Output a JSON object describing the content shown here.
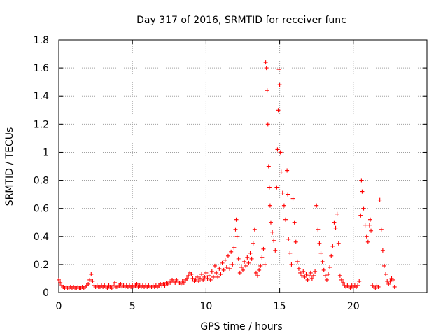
{
  "chart_data": {
    "type": "scatter",
    "title": "Day 317 of 2016, SRMTID for receiver func",
    "xlabel": "GPS time / hours",
    "ylabel": "SRMTID / TECUs",
    "xlim": [
      0,
      25
    ],
    "ylim": [
      0,
      1.8
    ],
    "xticks": [
      0,
      5,
      10,
      15,
      20
    ],
    "xtick_labels": [
      "0",
      "5",
      "10",
      "15",
      "20"
    ],
    "yticks": [
      0,
      0.2,
      0.4,
      0.6,
      0.8,
      1,
      1.2,
      1.4,
      1.6,
      1.8
    ],
    "ytick_labels": [
      "0",
      "0.2",
      "0.4",
      "0.6",
      "0.8",
      "1",
      "1.2",
      "1.4",
      "1.6",
      "1.8"
    ],
    "grid": true,
    "marker": "+",
    "color": "#ff0000",
    "series": [
      {
        "name": "SRMTID",
        "points": [
          [
            0.0,
            0.09
          ],
          [
            0.1,
            0.07
          ],
          [
            0.2,
            0.05
          ],
          [
            0.3,
            0.04
          ],
          [
            0.4,
            0.03
          ],
          [
            0.5,
            0.04
          ],
          [
            0.6,
            0.03
          ],
          [
            0.7,
            0.03
          ],
          [
            0.8,
            0.04
          ],
          [
            0.9,
            0.03
          ],
          [
            1.0,
            0.04
          ],
          [
            1.1,
            0.03
          ],
          [
            1.2,
            0.03
          ],
          [
            1.3,
            0.04
          ],
          [
            1.4,
            0.03
          ],
          [
            1.5,
            0.03
          ],
          [
            1.6,
            0.04
          ],
          [
            1.7,
            0.03
          ],
          [
            1.8,
            0.04
          ],
          [
            1.9,
            0.05
          ],
          [
            2.0,
            0.06
          ],
          [
            2.1,
            0.09
          ],
          [
            2.2,
            0.13
          ],
          [
            2.3,
            0.08
          ],
          [
            2.4,
            0.05
          ],
          [
            2.5,
            0.04
          ],
          [
            2.6,
            0.05
          ],
          [
            2.7,
            0.04
          ],
          [
            2.8,
            0.04
          ],
          [
            2.9,
            0.05
          ],
          [
            3.0,
            0.04
          ],
          [
            3.1,
            0.05
          ],
          [
            3.2,
            0.04
          ],
          [
            3.3,
            0.03
          ],
          [
            3.4,
            0.05
          ],
          [
            3.5,
            0.04
          ],
          [
            3.6,
            0.03
          ],
          [
            3.7,
            0.05
          ],
          [
            3.8,
            0.07
          ],
          [
            3.9,
            0.04
          ],
          [
            4.0,
            0.04
          ],
          [
            4.1,
            0.05
          ],
          [
            4.2,
            0.06
          ],
          [
            4.3,
            0.04
          ],
          [
            4.4,
            0.05
          ],
          [
            4.5,
            0.04
          ],
          [
            4.6,
            0.05
          ],
          [
            4.7,
            0.04
          ],
          [
            4.8,
            0.05
          ],
          [
            4.9,
            0.04
          ],
          [
            5.0,
            0.05
          ],
          [
            5.1,
            0.04
          ],
          [
            5.2,
            0.05
          ],
          [
            5.3,
            0.06
          ],
          [
            5.4,
            0.04
          ],
          [
            5.5,
            0.05
          ],
          [
            5.6,
            0.04
          ],
          [
            5.7,
            0.05
          ],
          [
            5.8,
            0.04
          ],
          [
            5.9,
            0.05
          ],
          [
            6.0,
            0.04
          ],
          [
            6.1,
            0.05
          ],
          [
            6.2,
            0.04
          ],
          [
            6.3,
            0.04
          ],
          [
            6.4,
            0.05
          ],
          [
            6.5,
            0.04
          ],
          [
            6.6,
            0.05
          ],
          [
            6.7,
            0.04
          ],
          [
            6.8,
            0.05
          ],
          [
            6.9,
            0.06
          ],
          [
            7.0,
            0.05
          ],
          [
            7.1,
            0.06
          ],
          [
            7.2,
            0.05
          ],
          [
            7.3,
            0.07
          ],
          [
            7.4,
            0.06
          ],
          [
            7.5,
            0.08
          ],
          [
            7.6,
            0.07
          ],
          [
            7.7,
            0.09
          ],
          [
            7.8,
            0.08
          ],
          [
            7.9,
            0.07
          ],
          [
            8.0,
            0.09
          ],
          [
            8.1,
            0.08
          ],
          [
            8.2,
            0.07
          ],
          [
            8.3,
            0.06
          ],
          [
            8.4,
            0.08
          ],
          [
            8.5,
            0.07
          ],
          [
            8.6,
            0.09
          ],
          [
            8.7,
            0.1
          ],
          [
            8.8,
            0.12
          ],
          [
            8.9,
            0.14
          ],
          [
            9.0,
            0.13
          ],
          [
            9.1,
            0.1
          ],
          [
            9.2,
            0.08
          ],
          [
            9.3,
            0.09
          ],
          [
            9.4,
            0.11
          ],
          [
            9.5,
            0.08
          ],
          [
            9.6,
            0.1
          ],
          [
            9.7,
            0.13
          ],
          [
            9.8,
            0.09
          ],
          [
            9.9,
            0.11
          ],
          [
            10.0,
            0.14
          ],
          [
            10.1,
            0.1
          ],
          [
            10.2,
            0.12
          ],
          [
            10.3,
            0.09
          ],
          [
            10.4,
            0.15
          ],
          [
            10.5,
            0.11
          ],
          [
            10.6,
            0.19
          ],
          [
            10.7,
            0.14
          ],
          [
            10.8,
            0.11
          ],
          [
            10.9,
            0.17
          ],
          [
            11.0,
            0.13
          ],
          [
            11.1,
            0.21
          ],
          [
            11.2,
            0.16
          ],
          [
            11.3,
            0.23
          ],
          [
            11.4,
            0.18
          ],
          [
            11.5,
            0.26
          ],
          [
            11.6,
            0.17
          ],
          [
            11.7,
            0.29
          ],
          [
            11.8,
            0.2
          ],
          [
            11.9,
            0.32
          ],
          [
            12.0,
            0.45
          ],
          [
            12.05,
            0.52
          ],
          [
            12.1,
            0.4
          ],
          [
            12.2,
            0.24
          ],
          [
            12.3,
            0.14
          ],
          [
            12.4,
            0.18
          ],
          [
            12.5,
            0.16
          ],
          [
            12.6,
            0.22
          ],
          [
            12.7,
            0.19
          ],
          [
            12.8,
            0.25
          ],
          [
            12.9,
            0.21
          ],
          [
            13.0,
            0.28
          ],
          [
            13.1,
            0.24
          ],
          [
            13.2,
            0.35
          ],
          [
            13.3,
            0.45
          ],
          [
            13.4,
            0.14
          ],
          [
            13.5,
            0.12
          ],
          [
            13.6,
            0.16
          ],
          [
            13.7,
            0.19
          ],
          [
            13.8,
            0.25
          ],
          [
            13.9,
            0.31
          ],
          [
            14.0,
            0.2
          ],
          [
            14.05,
            1.64
          ],
          [
            14.1,
            1.6
          ],
          [
            14.15,
            1.44
          ],
          [
            14.2,
            1.2
          ],
          [
            14.25,
            0.9
          ],
          [
            14.3,
            0.75
          ],
          [
            14.35,
            0.62
          ],
          [
            14.4,
            0.5
          ],
          [
            14.5,
            0.43
          ],
          [
            14.6,
            0.37
          ],
          [
            14.7,
            0.3
          ],
          [
            14.8,
            0.75
          ],
          [
            14.85,
            1.02
          ],
          [
            14.9,
            1.3
          ],
          [
            14.95,
            1.59
          ],
          [
            15.0,
            1.48
          ],
          [
            15.05,
            1.0
          ],
          [
            15.1,
            0.86
          ],
          [
            15.2,
            0.71
          ],
          [
            15.3,
            0.62
          ],
          [
            15.4,
            0.52
          ],
          [
            15.5,
            0.87
          ],
          [
            15.55,
            0.7
          ],
          [
            15.6,
            0.38
          ],
          [
            15.7,
            0.28
          ],
          [
            15.8,
            0.2
          ],
          [
            15.9,
            0.67
          ],
          [
            16.0,
            0.5
          ],
          [
            16.1,
            0.36
          ],
          [
            16.2,
            0.22
          ],
          [
            16.3,
            0.17
          ],
          [
            16.4,
            0.14
          ],
          [
            16.5,
            0.12
          ],
          [
            16.6,
            0.15
          ],
          [
            16.7,
            0.11
          ],
          [
            16.8,
            0.13
          ],
          [
            16.9,
            0.09
          ],
          [
            17.0,
            0.12
          ],
          [
            17.1,
            0.14
          ],
          [
            17.2,
            0.1
          ],
          [
            17.3,
            0.12
          ],
          [
            17.4,
            0.15
          ],
          [
            17.5,
            0.62
          ],
          [
            17.6,
            0.45
          ],
          [
            17.7,
            0.35
          ],
          [
            17.8,
            0.28
          ],
          [
            17.9,
            0.22
          ],
          [
            18.0,
            0.16
          ],
          [
            18.1,
            0.12
          ],
          [
            18.2,
            0.09
          ],
          [
            18.3,
            0.13
          ],
          [
            18.4,
            0.18
          ],
          [
            18.5,
            0.26
          ],
          [
            18.6,
            0.33
          ],
          [
            18.7,
            0.5
          ],
          [
            18.8,
            0.46
          ],
          [
            18.9,
            0.56
          ],
          [
            19.0,
            0.35
          ],
          [
            19.1,
            0.12
          ],
          [
            19.2,
            0.09
          ],
          [
            19.3,
            0.07
          ],
          [
            19.4,
            0.05
          ],
          [
            19.5,
            0.04
          ],
          [
            19.6,
            0.05
          ],
          [
            19.7,
            0.04
          ],
          [
            19.8,
            0.03
          ],
          [
            19.9,
            0.05
          ],
          [
            20.0,
            0.04
          ],
          [
            20.1,
            0.05
          ],
          [
            20.2,
            0.04
          ],
          [
            20.3,
            0.05
          ],
          [
            20.4,
            0.08
          ],
          [
            20.5,
            0.55
          ],
          [
            20.55,
            0.8
          ],
          [
            20.6,
            0.72
          ],
          [
            20.7,
            0.6
          ],
          [
            20.8,
            0.48
          ],
          [
            20.9,
            0.4
          ],
          [
            21.0,
            0.36
          ],
          [
            21.1,
            0.48
          ],
          [
            21.15,
            0.52
          ],
          [
            21.2,
            0.44
          ],
          [
            21.3,
            0.05
          ],
          [
            21.4,
            0.04
          ],
          [
            21.5,
            0.03
          ],
          [
            21.6,
            0.05
          ],
          [
            21.7,
            0.04
          ],
          [
            21.8,
            0.66
          ],
          [
            21.9,
            0.45
          ],
          [
            22.0,
            0.3
          ],
          [
            22.1,
            0.19
          ],
          [
            22.2,
            0.13
          ],
          [
            22.3,
            0.08
          ],
          [
            22.4,
            0.06
          ],
          [
            22.5,
            0.08
          ],
          [
            22.6,
            0.1
          ],
          [
            22.7,
            0.09
          ],
          [
            22.8,
            0.04
          ]
        ]
      }
    ]
  }
}
